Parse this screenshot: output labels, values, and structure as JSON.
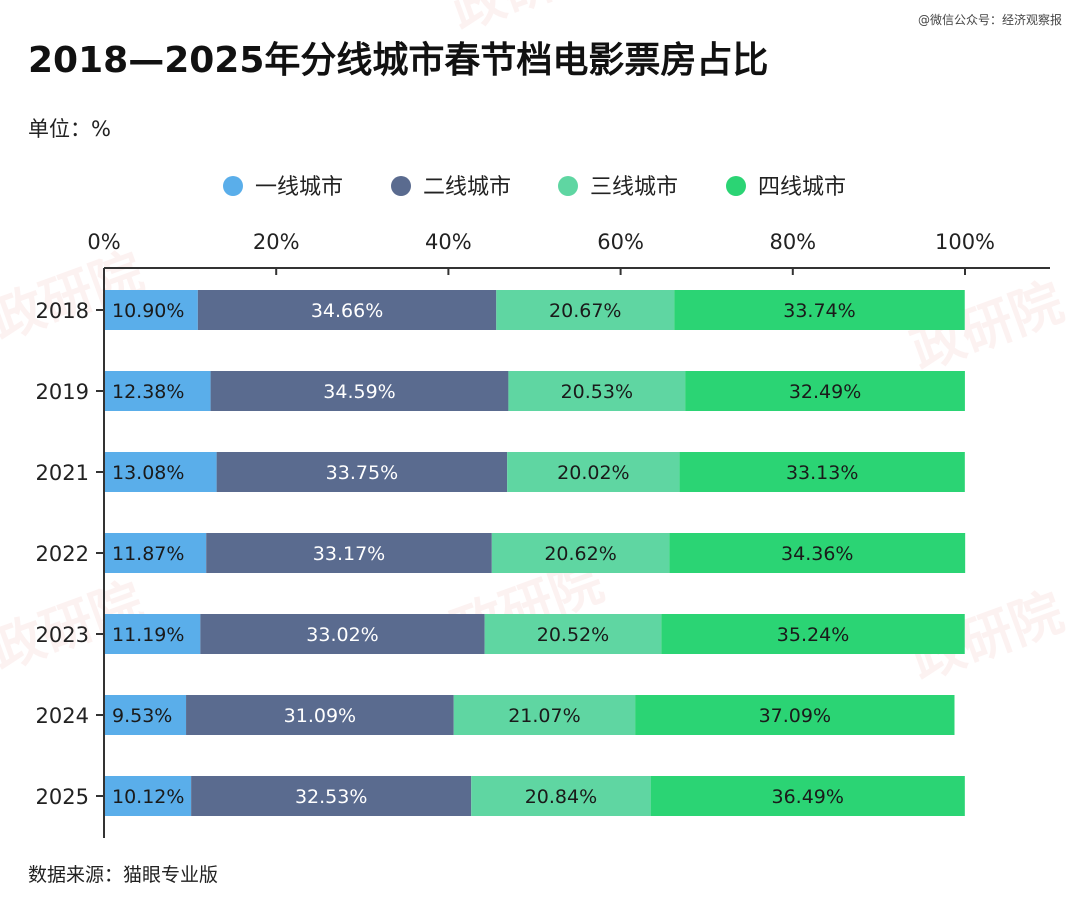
{
  "credit": "@微信公众号：经济观察报",
  "title": "2018—2025年分线城市春节档电影票房占比",
  "unit_label": "单位：%",
  "source": "数据来源：猫眼专业版",
  "watermark": "政研院",
  "chart_data": {
    "type": "bar",
    "orientation": "horizontal",
    "stacked": true,
    "title": "2018—2025年分线城市春节档电影票房占比",
    "xlabel": "",
    "ylabel": "",
    "xlim": [
      0,
      100
    ],
    "x_ticks": [
      "0%",
      "20%",
      "40%",
      "60%",
      "80%",
      "100%"
    ],
    "x_axis_position": "top",
    "legend_position": "top",
    "grid": false,
    "categories": [
      "2018",
      "2019",
      "2021",
      "2022",
      "2023",
      "2024",
      "2025"
    ],
    "series": [
      {
        "name": "一线城市",
        "color": "#5aaeea",
        "values": [
          10.9,
          12.38,
          13.08,
          11.87,
          11.19,
          9.53,
          10.12
        ],
        "labels": [
          "10.90%",
          "12.38%",
          "13.08%",
          "11.87%",
          "11.19%",
          "9.53%",
          "10.12%"
        ]
      },
      {
        "name": "二线城市",
        "color": "#5a6b8f",
        "values": [
          34.66,
          34.59,
          33.75,
          33.17,
          33.02,
          31.09,
          32.53
        ],
        "labels": [
          "34.66%",
          "34.59%",
          "33.75%",
          "33.17%",
          "33.02%",
          "31.09%",
          "32.53%"
        ]
      },
      {
        "name": "三线城市",
        "color": "#5fd6a2",
        "values": [
          20.67,
          20.53,
          20.02,
          20.62,
          20.52,
          21.07,
          20.84
        ],
        "labels": [
          "20.67%",
          "20.53%",
          "20.02%",
          "20.62%",
          "20.52%",
          "21.07%",
          "20.84%"
        ]
      },
      {
        "name": "四线城市",
        "color": "#2bd474",
        "values": [
          33.74,
          32.49,
          33.13,
          34.36,
          35.24,
          37.09,
          36.49
        ],
        "labels": [
          "33.74%",
          "32.49%",
          "33.13%",
          "34.36%",
          "35.24%",
          "37.09%",
          "36.49%"
        ]
      }
    ]
  }
}
